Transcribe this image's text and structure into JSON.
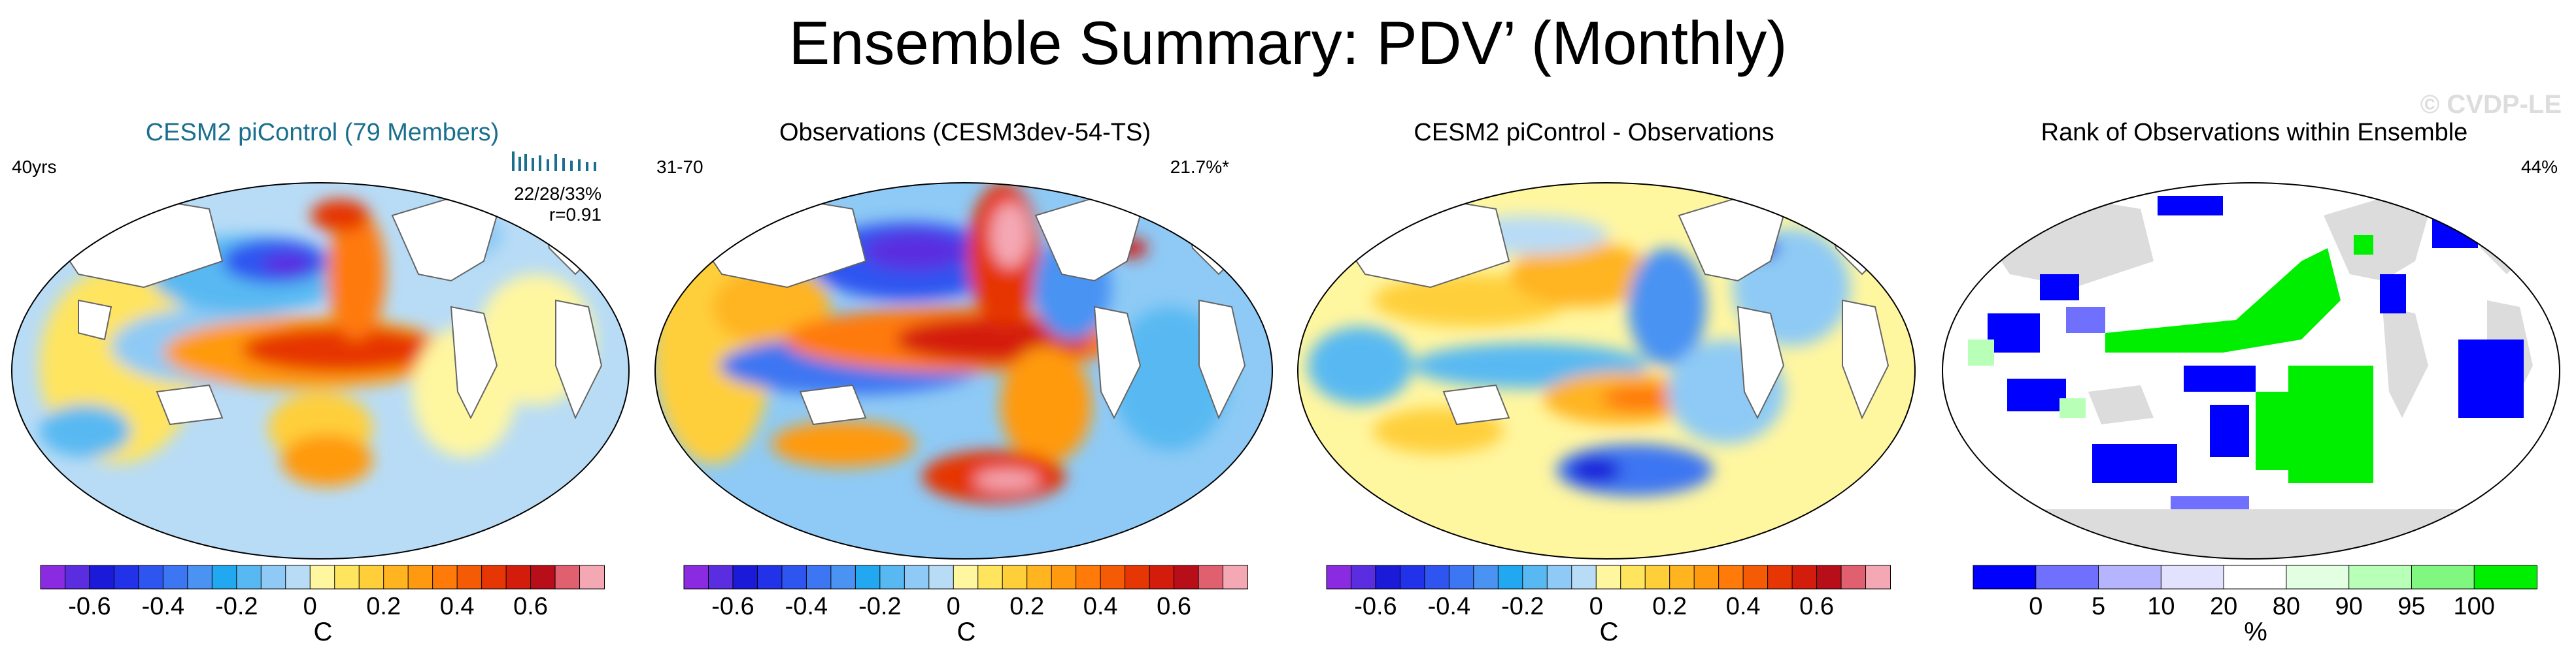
{
  "title": "Ensemble Summary: PDV’ (Monthly)",
  "watermark": "© CVDP-LE",
  "panels": [
    {
      "title": "CESM2 piControl (79 Members)",
      "title_color": "#1b6f8e",
      "left_label": "40yrs",
      "stats": "22/28/33%",
      "corr": "r=0.91"
    },
    {
      "title": "Observations (CESM3dev-54-TS)",
      "title_color": "#000000",
      "left_label": "31-70",
      "right_label": "21.7%*"
    },
    {
      "title": "CESM2 piControl - Observations",
      "title_color": "#000000"
    },
    {
      "title": "Rank of Observations within Ensemble",
      "title_color": "#000000",
      "right_label": "44%"
    }
  ],
  "colorbars": {
    "diverging": {
      "colors": [
        "#8a2be2",
        "#5a2de0",
        "#1a1ad8",
        "#2232e8",
        "#2e55f0",
        "#3c76f2",
        "#4a93f3",
        "#22a8f0",
        "#58b9f2",
        "#8ecaf5",
        "#b8dcf6",
        "#fff6a0",
        "#ffe45e",
        "#ffcf3a",
        "#ffb420",
        "#ff9a10",
        "#ff7a08",
        "#f55a05",
        "#e63604",
        "#d41c0c",
        "#b80e1a",
        "#e06070",
        "#f4a8b4"
      ],
      "ticks": [
        "-0.6",
        "-0.4",
        "-0.2",
        "0",
        "0.2",
        "0.4",
        "0.6"
      ],
      "unit": "C"
    },
    "rank": {
      "colors": [
        "#0000ff",
        "#7070ff",
        "#b4b4ff",
        "#e2e2ff",
        "#ffffff",
        "#e2ffe2",
        "#b8ffb8",
        "#80f880",
        "#00ee00"
      ],
      "ticks": [
        "0",
        "5",
        "10",
        "20",
        "80",
        "90",
        "95",
        "100"
      ],
      "unit": "%"
    }
  },
  "chart_data": {
    "type": "heatmap",
    "title": "Ensemble Summary: PDV’ (Monthly)",
    "maps": [
      {
        "name": "CESM2 piControl (79 Members)",
        "variable": "PDV pattern",
        "units": "C",
        "range": [
          -0.7,
          0.7
        ],
        "features": [
          "warm anomaly along eastern tropical Pacific (~0.5)",
          "cold anomaly in central North Pacific (~-0.6)",
          "warm horseshoe along North American coast",
          "cool anomalies elsewhere (~-0.1 to -0.2)"
        ]
      },
      {
        "name": "Observations (CESM3dev-54-TS)",
        "variable": "PDV pattern",
        "units": "C",
        "range": [
          -0.7,
          0.7
        ],
        "features": [
          "strong warm tropical/eastern Pacific (~0.6)",
          "cold central North Pacific (~-0.6)",
          "warm Southern Ocean patch (~0.6)"
        ]
      },
      {
        "name": "CESM2 piControl - Observations",
        "variable": "difference",
        "units": "C",
        "range": [
          -0.7,
          0.7
        ],
        "features": [
          "mostly weak differences (±0.2)",
          "negative differences Southern Ocean (~-0.5)"
        ]
      },
      {
        "name": "Rank of Observations within Ensemble",
        "variable": "rank",
        "units": "%",
        "bins": [
          0,
          5,
          10,
          20,
          80,
          90,
          95,
          100
        ],
        "features": [
          ">95% in tropical Pacific and South Pacific",
          "<5% in parts of Atlantic and Indian Oceans",
          "land masked gray"
        ]
      }
    ]
  }
}
